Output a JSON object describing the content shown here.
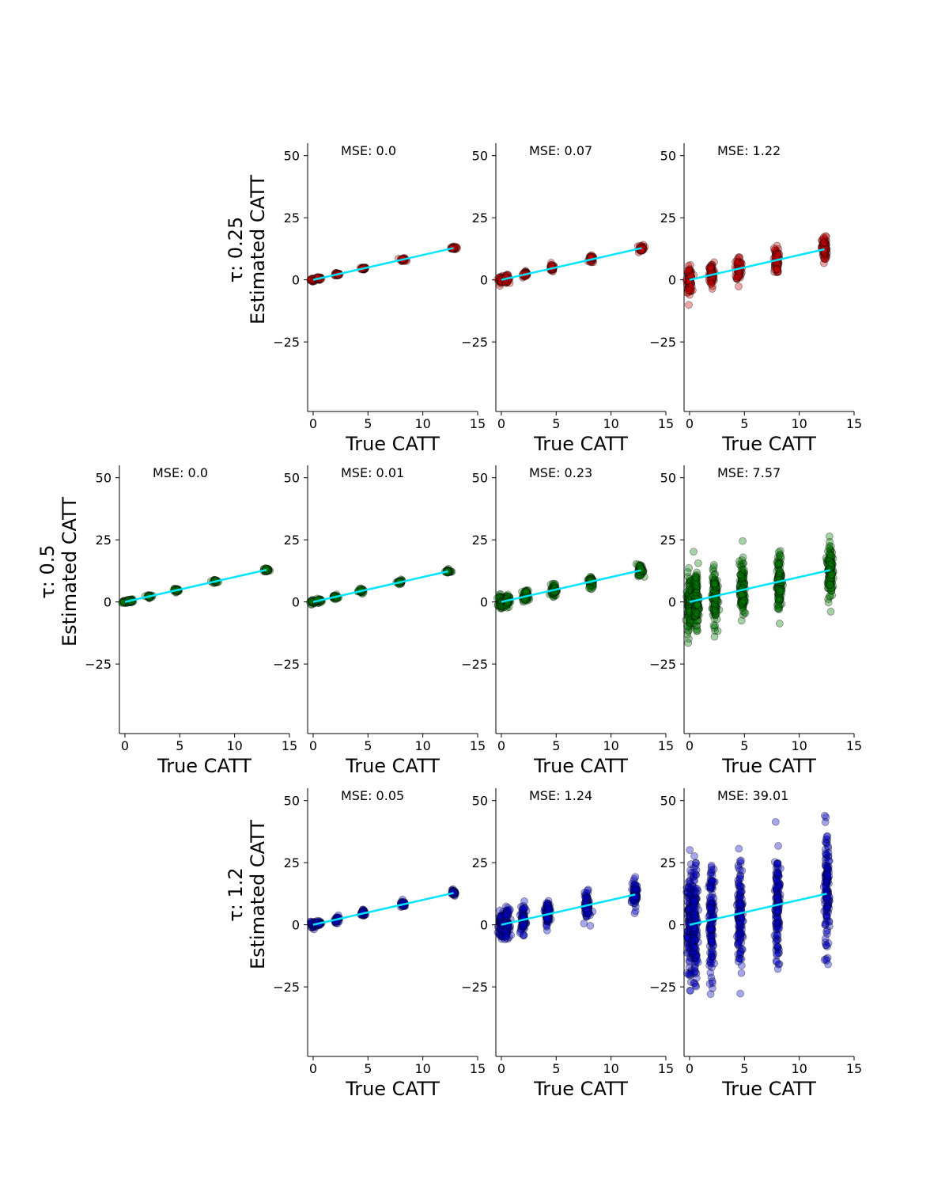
{
  "chart_data": {
    "type": "scatter",
    "layout": "3x4 grid, row-specific panels",
    "axis": {
      "xlabel": "True CATT",
      "ylabel": "Estimated CATT",
      "xlim": [
        -0.5,
        15
      ],
      "ylim": [
        -53,
        55
      ],
      "xticks": [
        0,
        5,
        10,
        15
      ],
      "yticks": [
        50,
        25,
        0,
        -25
      ],
      "tick_labels_x": [
        "0",
        "5",
        "10",
        "15"
      ],
      "tick_labels_y": [
        "50",
        "25",
        "0",
        "−25"
      ]
    },
    "reference_line": {
      "color": "#00e5ff",
      "description": "y = x"
    },
    "mse_prefix": "MSE: ",
    "rows": [
      {
        "label": "τ: 0.25",
        "color": "#cc0000",
        "panels": [
          {
            "col": 1,
            "mse": "0.0",
            "clusters": [
              0,
              0.5,
              2.2,
              4.6,
              8.2,
              12.8
            ],
            "spread": 0.3
          },
          {
            "col": 2,
            "mse": "0.07",
            "clusters": [
              0,
              0.5,
              2.2,
              4.6,
              8.2,
              12.8
            ],
            "spread": 0.7
          },
          {
            "col": 3,
            "mse": "1.22",
            "clusters": [
              0,
              2.0,
              4.5,
              7.9,
              12.3
            ],
            "spread": 2.5
          }
        ]
      },
      {
        "label": "τ: 0.5",
        "color": "#007a00",
        "panels": [
          {
            "col": 0,
            "mse": "0.0",
            "clusters": [
              0,
              0.5,
              2.2,
              4.7,
              8.3,
              12.9
            ],
            "spread": 0.3
          },
          {
            "col": 1,
            "mse": "0.01",
            "clusters": [
              0,
              0.5,
              2.0,
              4.4,
              7.9,
              12.3
            ],
            "spread": 0.4
          },
          {
            "col": 2,
            "mse": "0.23",
            "clusters": [
              0,
              0.5,
              2.2,
              4.8,
              8.2,
              12.7
            ],
            "spread": 1.2
          },
          {
            "col": 3,
            "mse": "7.57",
            "clusters": [
              0,
              0.6,
              2.3,
              4.8,
              8.2,
              12.8
            ],
            "spread": 5.5
          }
        ]
      },
      {
        "label": "τ: 1.2",
        "color": "#0000cc",
        "panels": [
          {
            "col": 1,
            "mse": "0.05",
            "clusters": [
              0,
              0.5,
              2.2,
              4.6,
              8.2,
              12.8
            ],
            "spread": 0.6
          },
          {
            "col": 2,
            "mse": "1.24",
            "clusters": [
              0,
              0.5,
              2.0,
              4.2,
              7.8,
              12.2
            ],
            "spread": 2.7
          },
          {
            "col": 3,
            "mse": "39.01",
            "clusters": [
              0,
              0.5,
              2.0,
              4.6,
              8.0,
              12.5
            ],
            "spread": 11.0
          }
        ]
      }
    ]
  }
}
